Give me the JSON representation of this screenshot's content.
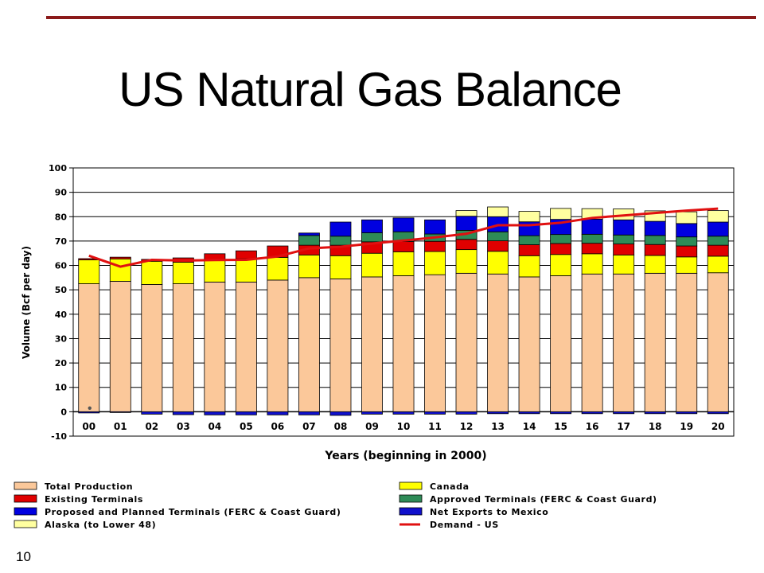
{
  "slide": {
    "title": "US Natural Gas Balance",
    "page_number": "10",
    "accent_color": "#8b1a1a"
  },
  "chart_data": {
    "type": "bar",
    "stacked": true,
    "title": "US Natural Gas Balance",
    "xlabel": "Years (beginning in 2000)",
    "ylabel": "Volume (Bcf per day)",
    "ylim": [
      -10,
      100
    ],
    "yticks": [
      -10,
      0,
      10,
      20,
      30,
      40,
      50,
      60,
      70,
      80,
      90,
      100
    ],
    "grid": true,
    "legend_position": "bottom",
    "categories": [
      "00",
      "01",
      "02",
      "03",
      "04",
      "05",
      "06",
      "07",
      "08",
      "09",
      "10",
      "11",
      "12",
      "13",
      "14",
      "15",
      "16",
      "17",
      "18",
      "19",
      "20"
    ],
    "series": [
      {
        "name": "Total Production",
        "color": "#fbc89a",
        "values": [
          52.5,
          53.5,
          52.2,
          52.5,
          53.2,
          53.2,
          54.0,
          55.0,
          54.5,
          55.3,
          55.8,
          56.2,
          56.8,
          56.5,
          55.3,
          55.8,
          56.5,
          56.5,
          56.8,
          56.8,
          57.0
        ]
      },
      {
        "name": "Canada",
        "color": "#ffff00",
        "values": [
          9.8,
          9.2,
          9.5,
          8.8,
          8.8,
          9.5,
          9.3,
          9.3,
          9.5,
          9.7,
          9.8,
          9.5,
          9.7,
          9.3,
          8.7,
          8.7,
          8.3,
          7.8,
          7.3,
          6.7,
          6.8
        ]
      },
      {
        "name": "Existing Terminals",
        "color": "#e00000",
        "values": [
          0.5,
          0.7,
          0.8,
          1.8,
          2.8,
          3.3,
          4.7,
          4.0,
          4.3,
          4.7,
          4.2,
          4.2,
          4.2,
          4.3,
          4.5,
          4.5,
          4.3,
          4.5,
          4.5,
          4.5,
          4.5
        ]
      },
      {
        "name": "Approved Terminals (FERC & Coast Guard)",
        "color": "#2e8b57",
        "values": [
          0,
          0,
          0,
          0,
          0,
          0,
          0,
          4.0,
          3.7,
          3.7,
          4.0,
          3.0,
          3.7,
          3.7,
          3.7,
          3.7,
          3.7,
          3.7,
          3.7,
          3.7,
          3.7
        ]
      },
      {
        "name": "Proposed and Planned Terminals (FERC & Coast Guard)",
        "color": "#0000e0",
        "values": [
          0,
          0,
          0,
          0,
          0,
          0,
          0,
          1.0,
          5.8,
          5.3,
          5.7,
          5.8,
          5.8,
          6.2,
          5.7,
          6.2,
          6.2,
          6.2,
          5.8,
          5.5,
          5.8
        ]
      },
      {
        "name": "Net Exports to Mexico",
        "color": "#1010cc",
        "values": [
          -0.5,
          -0.2,
          -1.0,
          -1.2,
          -1.3,
          -1.3,
          -1.3,
          -1.3,
          -1.5,
          -1.0,
          -1.0,
          -1.0,
          -1.0,
          -0.8,
          -0.8,
          -0.8,
          -0.8,
          -0.8,
          -0.8,
          -0.8,
          -0.8
        ]
      },
      {
        "name": "Alaska (to Lower 48)",
        "color": "#ffffa0",
        "values": [
          0,
          0,
          0,
          0,
          0,
          0,
          0,
          0,
          0,
          0,
          0,
          0,
          2.3,
          4.0,
          4.3,
          4.5,
          4.3,
          4.5,
          4.3,
          4.8,
          4.7
        ]
      },
      {
        "name": "Demand - US",
        "color": "#e01010",
        "type": "line",
        "values": [
          64.0,
          59.5,
          62.3,
          62.0,
          62.2,
          62.3,
          63.7,
          67.0,
          67.7,
          69.0,
          70.2,
          71.5,
          73.0,
          76.5,
          76.5,
          77.5,
          79.5,
          80.5,
          81.5,
          82.5,
          83.3
        ]
      }
    ]
  }
}
